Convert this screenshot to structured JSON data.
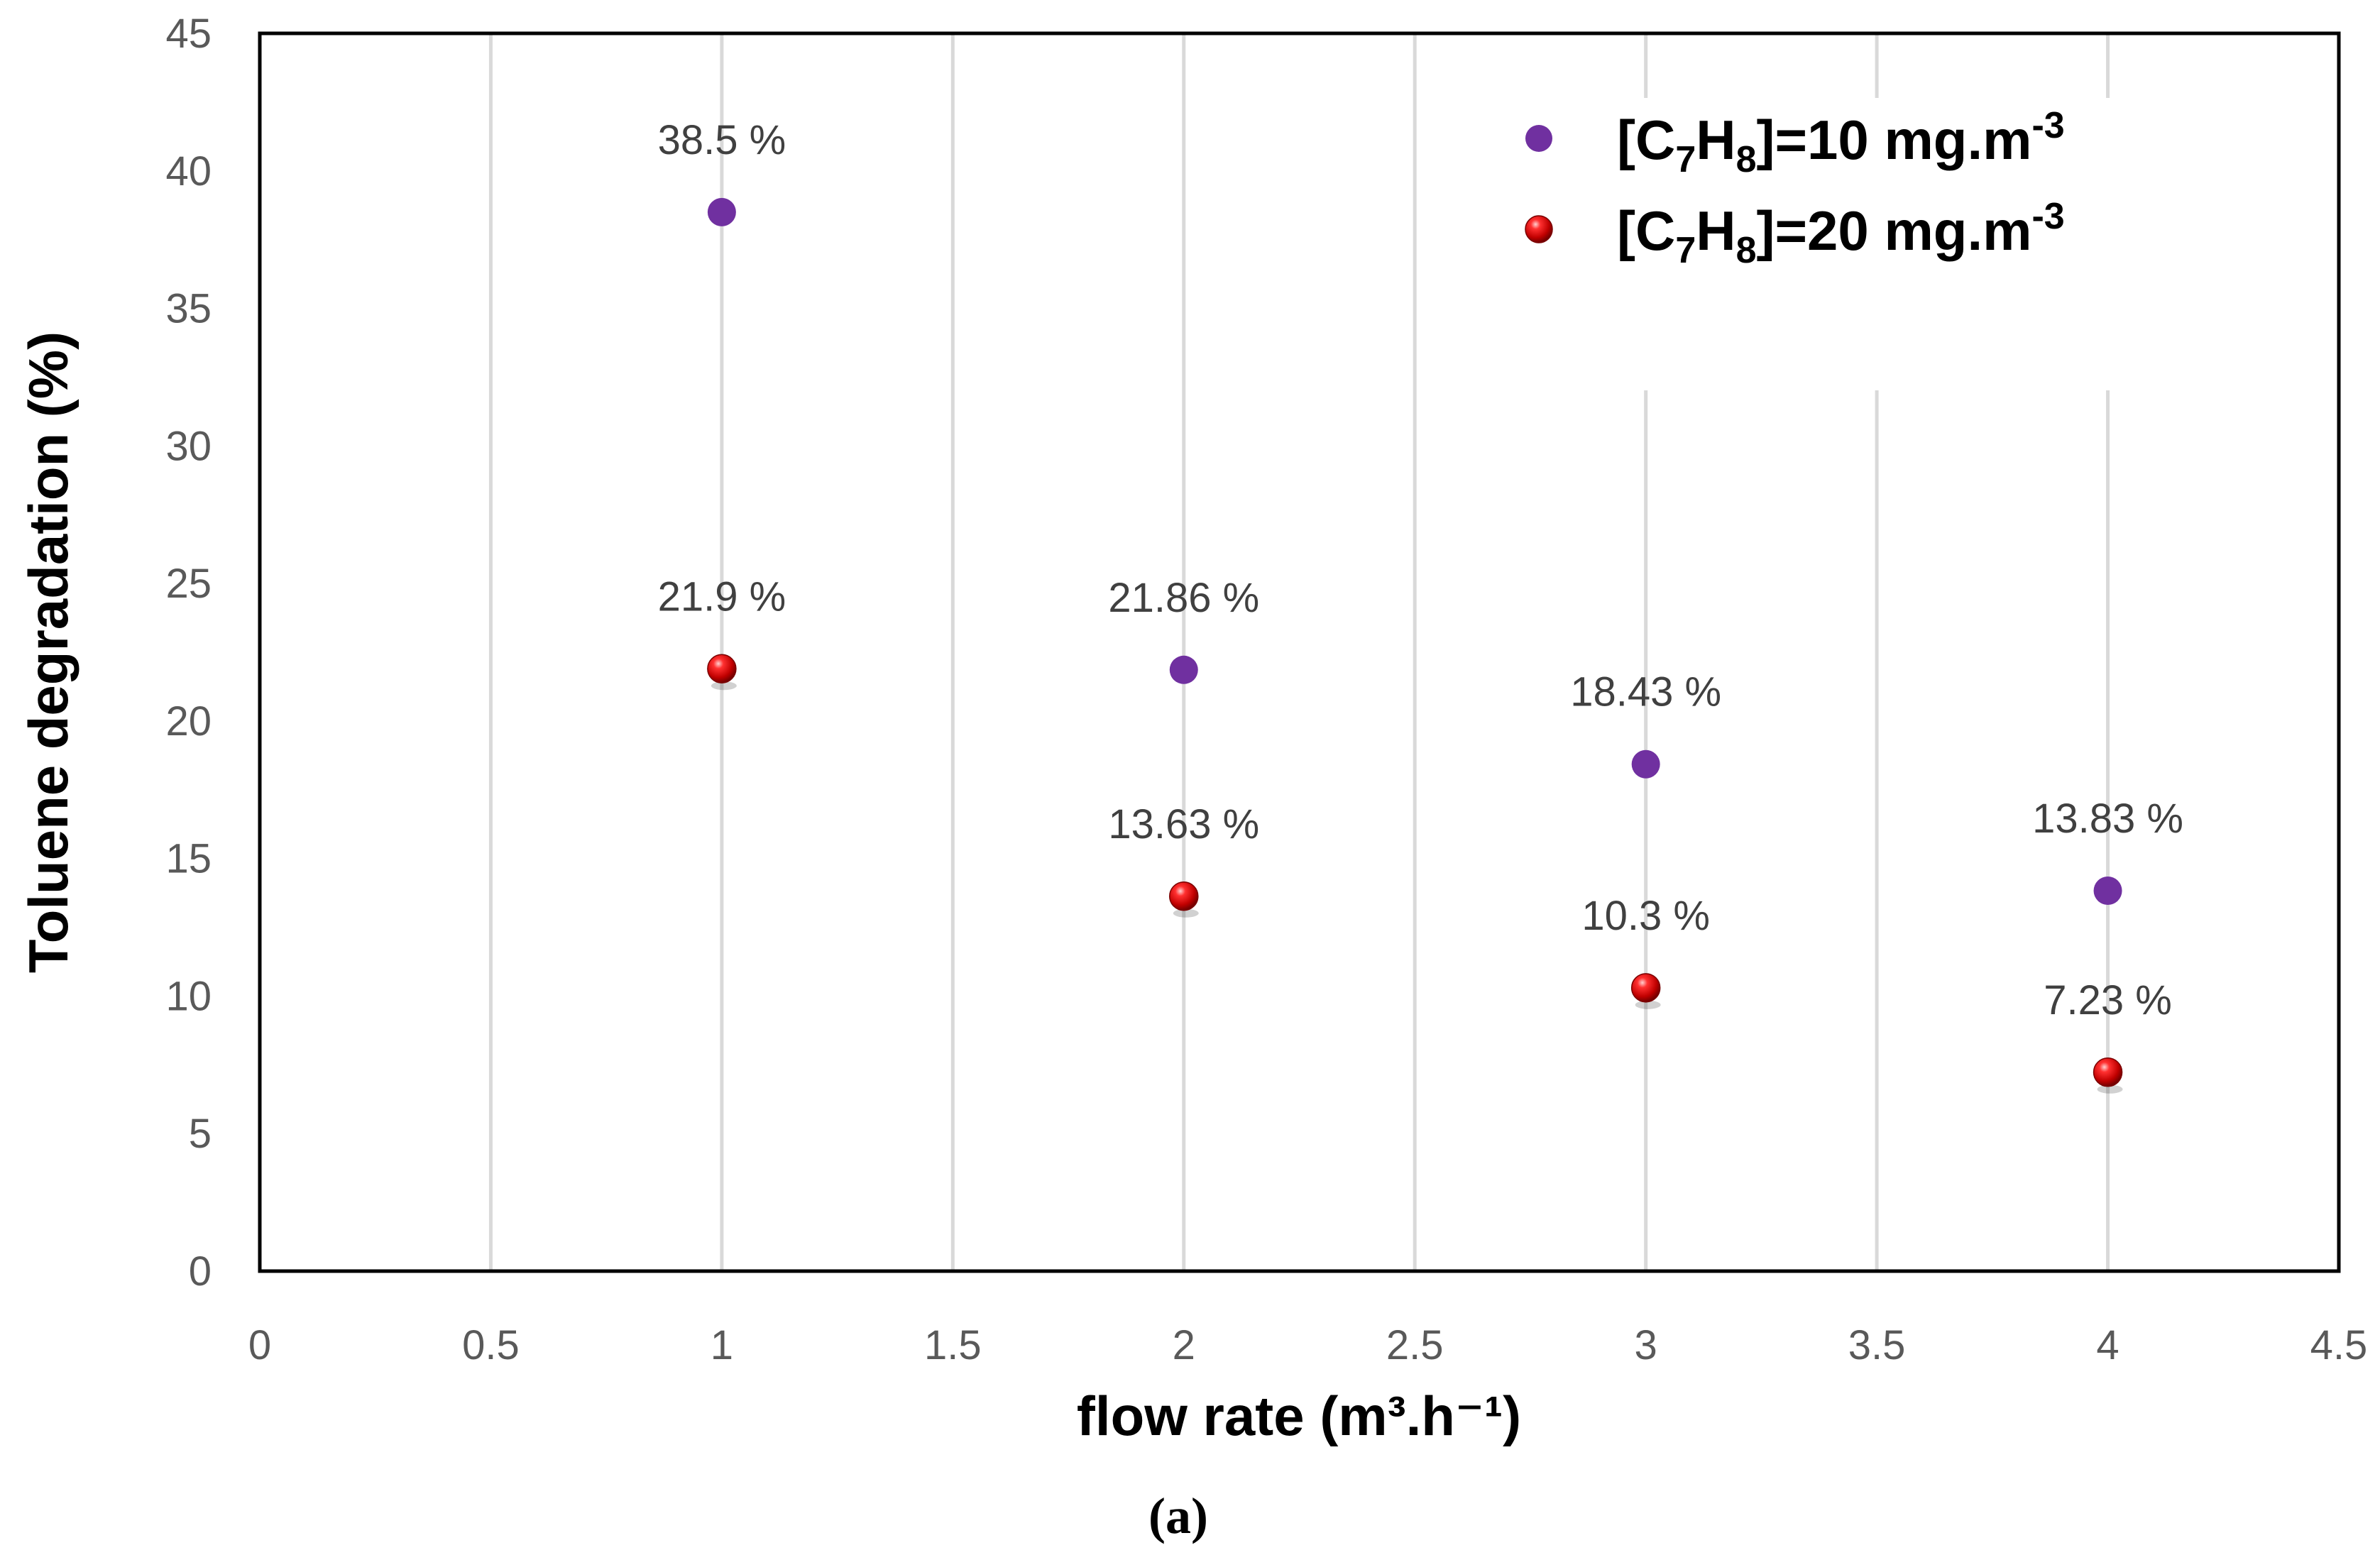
{
  "chart_data": {
    "type": "scatter",
    "title": "",
    "xlabel": "flow rate (m³.h⁻¹)",
    "ylabel": "Toluene degradation (%)",
    "xlim": [
      0,
      4.5
    ],
    "ylim": [
      0,
      45
    ],
    "x_ticks": [
      "0",
      "0.5",
      "1",
      "1.5",
      "2",
      "2.5",
      "3",
      "3.5",
      "4",
      "4.5"
    ],
    "y_ticks": [
      "0",
      "5",
      "10",
      "15",
      "20",
      "25",
      "30",
      "35",
      "40",
      "45"
    ],
    "grid": "vertical",
    "legend_position": "top-right",
    "caption": "(a)",
    "series": [
      {
        "name": "[C7H8]=10 mg.m-3",
        "legend_label": {
          "prefix": "[C",
          "sub1": "7",
          "mid": "H",
          "sub2": "8",
          "after": "]=10 mg.m",
          "sup": "-3"
        },
        "color": "#7030A0",
        "marker": "circle",
        "points": [
          {
            "x": 1,
            "y": 38.5,
            "label": "38.5 %"
          },
          {
            "x": 2,
            "y": 21.86,
            "label": "21.86 %"
          },
          {
            "x": 3,
            "y": 18.43,
            "label": "18.43 %"
          },
          {
            "x": 4,
            "y": 13.83,
            "label": "13.83 %"
          }
        ]
      },
      {
        "name": "[C7H8]=20 mg.m-3",
        "legend_label": {
          "prefix": "[C",
          "sub1": "7",
          "mid": "H",
          "sub2": "8",
          "after": "]=20 mg.m",
          "sup": "-3"
        },
        "color": "#C00000",
        "marker": "sphere",
        "points": [
          {
            "x": 1,
            "y": 21.9,
            "label": "21.9 %"
          },
          {
            "x": 2,
            "y": 13.63,
            "label": "13.63 %"
          },
          {
            "x": 3,
            "y": 10.3,
            "label": "10.3 %"
          },
          {
            "x": 4,
            "y": 7.23,
            "label": "7.23 %"
          }
        ]
      }
    ]
  }
}
